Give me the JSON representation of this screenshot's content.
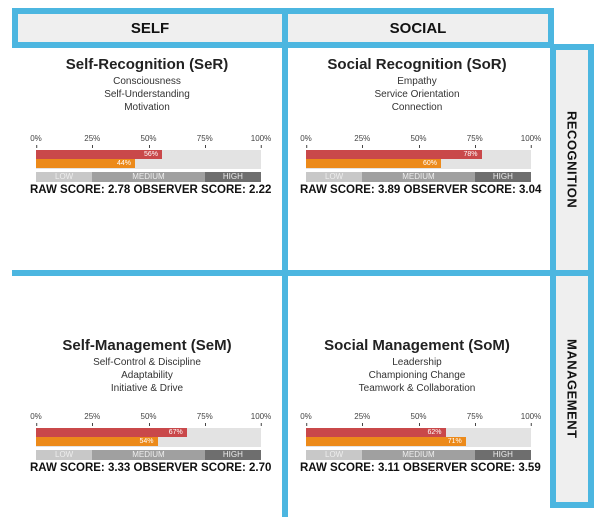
{
  "headers": {
    "self": "SELF",
    "social": "SOCIAL",
    "recognition": "RECOGNITION",
    "management": "MANAGEMENT"
  },
  "colors": {
    "frame": "#4cb6e0",
    "raw_bar": "#c9484a",
    "observer_bar": "#ec8a1a",
    "low": "#c8c8c8",
    "medium": "#a0a0a0",
    "high": "#6e6e6e"
  },
  "scale": {
    "ticks": [
      "0%",
      "25%",
      "50%",
      "75%",
      "100%"
    ],
    "levels": [
      "LOW",
      "MEDIUM",
      "HIGH"
    ]
  },
  "quadrants": [
    {
      "title": "Self-Recognition (SeR)",
      "items": [
        "Consciousness",
        "Self-Understanding",
        "Motivation"
      ],
      "raw_pct": 56,
      "raw_label": "56%",
      "observer_pct": 44,
      "observer_label": "44%",
      "score_text": "RAW SCORE: 2.78  OBSERVER SCORE: 2.22"
    },
    {
      "title": "Social Recognition (SoR)",
      "items": [
        "Empathy",
        "Service Orientation",
        "Connection"
      ],
      "raw_pct": 78,
      "raw_label": "78%",
      "observer_pct": 60,
      "observer_label": "60%",
      "score_text": "RAW SCORE: 3.89  OBSERVER SCORE: 3.04"
    },
    {
      "title": "Self-Management (SeM)",
      "items": [
        "Self-Control & Discipline",
        "Adaptability",
        "Initiative & Drive"
      ],
      "raw_pct": 67,
      "raw_label": "67%",
      "observer_pct": 54,
      "observer_label": "54%",
      "score_text": "RAW SCORE: 3.33  OBSERVER SCORE: 2.70"
    },
    {
      "title": "Social Management (SoM)",
      "items": [
        "Leadership",
        "Championing Change",
        "Teamwork & Collaboration"
      ],
      "raw_pct": 62,
      "raw_label": "62%",
      "observer_pct": 71,
      "observer_label": "71%",
      "score_text": "RAW SCORE: 3.11  OBSERVER SCORE: 3.59"
    }
  ]
}
